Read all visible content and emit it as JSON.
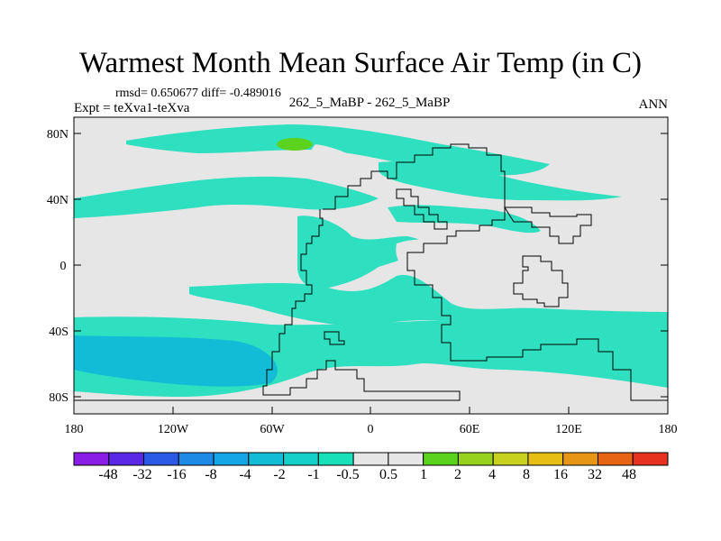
{
  "header": {
    "title": "Warmest Month Mean Surface Air Temp (in C)",
    "stats": "rmsd= 0.650677 diff= -0.489016",
    "expt": "Expt = teXva1-teXva",
    "center_label": "262_5_MaBP - 262_5_MaBP",
    "season": "ANN"
  },
  "axes": {
    "x_ticks": [
      "180",
      "120W",
      "60W",
      "0",
      "60E",
      "120E",
      "180"
    ],
    "y_ticks": [
      "80N",
      "40N",
      "0",
      "40S",
      "80S"
    ]
  },
  "colorbar": {
    "labels": [
      "-48",
      "-32",
      "-16",
      "-8",
      "-4",
      "-2",
      "-1",
      "-0.5",
      "0.5",
      "1",
      "2",
      "4",
      "8",
      "16",
      "32",
      "48"
    ],
    "colors": [
      "#8a1ee6",
      "#5a28e6",
      "#2a5ae6",
      "#1e8ae6",
      "#14a6e6",
      "#12bcd6",
      "#14d0c8",
      "#18e0b8",
      "#e6e6e6",
      "#5ad21e",
      "#96d21e",
      "#c8d21e",
      "#e6be14",
      "#e69614",
      "#e66414",
      "#e6321e"
    ]
  },
  "field_colors": {
    "background": "#e6e6e6",
    "light_cyan": "#2ee0c0",
    "medium_cyan": "#14ccd2",
    "deep_cyan": "#12bcd6",
    "green": "#5ad21e"
  }
}
